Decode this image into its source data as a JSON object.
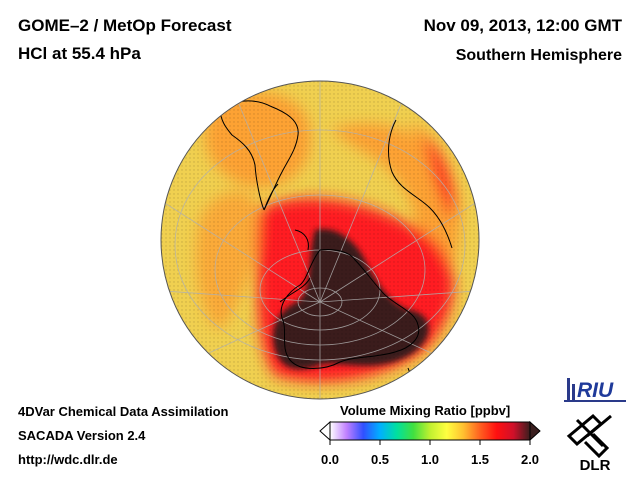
{
  "header": {
    "title_line1": "GOME–2 / MetOp Forecast",
    "title_line2": "HCl at 55.4 hPa",
    "datetime": "Nov 09, 2013, 12:00 GMT",
    "region": "Southern Hemisphere"
  },
  "footer": {
    "line1": "4DVar Chemical Data Assimilation",
    "line2": "SACADA Version 2.4",
    "line3": "http://wdc.dlr.de"
  },
  "colorbar": {
    "title": "Volume Mixing Ratio [ppbv]",
    "min": 0.0,
    "max": 2.0,
    "ticks": [
      "0.0",
      "0.5",
      "1.0",
      "1.5",
      "2.0"
    ],
    "tick_values": [
      0.0,
      0.5,
      1.0,
      1.5,
      2.0
    ],
    "colors": [
      "#ffffff",
      "#c080ff",
      "#3050ff",
      "#00b0ff",
      "#00e0a0",
      "#40e040",
      "#c0f030",
      "#ffff40",
      "#ffc030",
      "#ff6020",
      "#ff1010",
      "#d0102a",
      "#3a1e1e"
    ]
  },
  "logos": {
    "riu": "RIU",
    "dlr": "DLR"
  },
  "map": {
    "projection": "orthographic",
    "hemisphere": "south",
    "field": "HCl",
    "colors": {
      "background": "#f0d050",
      "mid": "#ff9a30",
      "ring": "#ff1e24",
      "core": "#3a1e1e",
      "coast": "#000000",
      "grid": "#b0b0b0"
    }
  }
}
